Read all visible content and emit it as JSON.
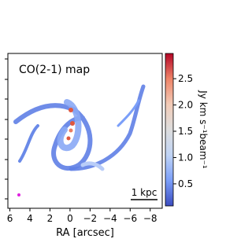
{
  "chart_data": {
    "type": "image",
    "title": "CO(2-1) map",
    "x_label": "RA [arcsec]",
    "xlim": [
      6.2,
      -9.2
    ],
    "xticks": [
      6,
      4,
      2,
      0,
      {
        "value": -2,
        "label": "−2"
      },
      {
        "value": -4,
        "label": "−4"
      },
      {
        "value": -6,
        "label": "−6"
      },
      {
        "value": -8,
        "label": "−8"
      }
    ],
    "scale_bar": "1 kpc",
    "colorbar": {
      "label": "Jy km s⁻¹beam⁻¹",
      "clim": [
        0.08,
        2.98
      ],
      "ticks": [
        0.5,
        1.0,
        1.5,
        2.0,
        2.5
      ],
      "colors": [
        "#3b4cc0",
        "#7b9ff9",
        "#c0d4f5",
        "#dddddd",
        "#f2cbb7",
        "#ee8468",
        "#b40426"
      ]
    }
  }
}
